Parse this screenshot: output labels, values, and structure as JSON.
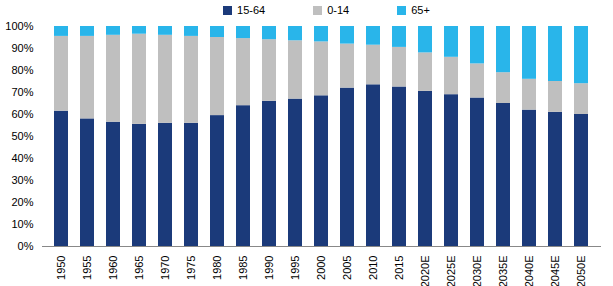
{
  "chart_data": {
    "type": "bar",
    "stacked": true,
    "legend": "top",
    "categories": [
      "1950",
      "1955",
      "1960",
      "1965",
      "1970",
      "1975",
      "1980",
      "1985",
      "1990",
      "1995",
      "2000",
      "2005",
      "2010",
      "2015",
      "2020E",
      "2025E",
      "2030E",
      "2035E",
      "2040E",
      "2045E",
      "2050E"
    ],
    "series": [
      {
        "name": "15-64",
        "color": "#1b3a7a",
        "values": [
          61.5,
          58,
          56.5,
          55.5,
          56,
          56,
          59.5,
          64,
          66,
          67,
          68.5,
          72,
          73.5,
          72.5,
          70.5,
          69,
          67.5,
          65,
          62,
          61,
          60
        ]
      },
      {
        "name": "0-14",
        "color": "#bfbfbf",
        "values": [
          34,
          37.5,
          39.5,
          41,
          40,
          39.5,
          35.5,
          30.5,
          28,
          26.5,
          24.5,
          20,
          18,
          18,
          17.5,
          17,
          15.5,
          14,
          14,
          14,
          14
        ]
      },
      {
        "name": "65+",
        "color": "#29b5ea",
        "values": [
          4.5,
          4.5,
          4,
          3.5,
          4,
          4.5,
          5,
          5.5,
          6,
          6.5,
          7,
          8,
          8.5,
          9.5,
          12,
          14,
          17,
          21,
          24,
          25,
          26
        ]
      }
    ],
    "ylim": [
      0,
      100
    ],
    "yticks": [
      {
        "value": 0,
        "label": "0%"
      },
      {
        "value": 10,
        "label": "10%"
      },
      {
        "value": 20,
        "label": "20%"
      },
      {
        "value": 30,
        "label": "30%"
      },
      {
        "value": 40,
        "label": "40%"
      },
      {
        "value": 50,
        "label": "50%"
      },
      {
        "value": 60,
        "label": "60%"
      },
      {
        "value": 70,
        "label": "70%"
      },
      {
        "value": 80,
        "label": "80%"
      },
      {
        "value": 90,
        "label": "90%"
      },
      {
        "value": 100,
        "label": "100%"
      }
    ],
    "grid": false
  }
}
